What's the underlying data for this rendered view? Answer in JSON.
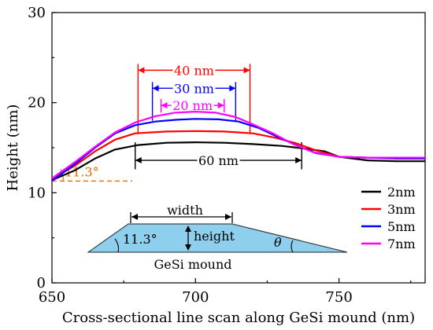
{
  "chart_data": {
    "type": "line",
    "title": "",
    "xlabel": "Cross-sectional line scan along GeSi mound (nm)",
    "ylabel": "Height (nm)",
    "xlim": [
      650,
      780
    ],
    "ylim": [
      0,
      30
    ],
    "xticks": [
      650,
      700,
      750
    ],
    "yticks": [
      0,
      10,
      20,
      30
    ],
    "grid": false,
    "legend_position": "right",
    "series": [
      {
        "name": "2nm",
        "color": "#000000",
        "points": [
          [
            650,
            11.4
          ],
          [
            658,
            12.5
          ],
          [
            665,
            13.8
          ],
          [
            672,
            14.8
          ],
          [
            680,
            15.3
          ],
          [
            690,
            15.55
          ],
          [
            700,
            15.6
          ],
          [
            710,
            15.55
          ],
          [
            720,
            15.4
          ],
          [
            730,
            15.2
          ],
          [
            738,
            14.9
          ],
          [
            745,
            14.6
          ],
          [
            750,
            14.0
          ],
          [
            760,
            13.6
          ],
          [
            770,
            13.5
          ],
          [
            780,
            13.5
          ]
        ]
      },
      {
        "name": "3nm",
        "color": "#ff0000",
        "points": [
          [
            650,
            11.6
          ],
          [
            658,
            13.0
          ],
          [
            665,
            14.6
          ],
          [
            672,
            15.9
          ],
          [
            679,
            16.6
          ],
          [
            690,
            16.8
          ],
          [
            700,
            16.85
          ],
          [
            710,
            16.8
          ],
          [
            720,
            16.6
          ],
          [
            728,
            16.1
          ],
          [
            735,
            15.5
          ],
          [
            742,
            14.7
          ],
          [
            750,
            14.0
          ],
          [
            760,
            13.9
          ],
          [
            770,
            13.9
          ],
          [
            780,
            13.9
          ]
        ]
      },
      {
        "name": "5nm",
        "color": "#0000ff",
        "points": [
          [
            650,
            11.3
          ],
          [
            658,
            13.2
          ],
          [
            665,
            15.0
          ],
          [
            672,
            16.6
          ],
          [
            679,
            17.5
          ],
          [
            686,
            17.9
          ],
          [
            693,
            18.1
          ],
          [
            700,
            18.2
          ],
          [
            708,
            18.15
          ],
          [
            715,
            17.9
          ],
          [
            722,
            17.2
          ],
          [
            728,
            16.3
          ],
          [
            735,
            15.3
          ],
          [
            742,
            14.4
          ],
          [
            750,
            14.0
          ],
          [
            760,
            13.9
          ],
          [
            770,
            13.8
          ],
          [
            780,
            13.8
          ]
        ]
      },
      {
        "name": "7nm",
        "color": "#ff00ff",
        "points": [
          [
            650,
            11.6
          ],
          [
            658,
            13.4
          ],
          [
            665,
            15.1
          ],
          [
            672,
            16.7
          ],
          [
            679,
            17.8
          ],
          [
            686,
            18.5
          ],
          [
            693,
            18.9
          ],
          [
            700,
            19.0
          ],
          [
            707,
            18.9
          ],
          [
            714,
            18.4
          ],
          [
            720,
            17.6
          ],
          [
            727,
            16.6
          ],
          [
            734,
            15.4
          ],
          [
            741,
            14.5
          ],
          [
            750,
            14.0
          ],
          [
            760,
            13.9
          ],
          [
            770,
            13.9
          ],
          [
            780,
            13.9
          ]
        ]
      }
    ],
    "annotations": [
      {
        "label": "40 nm",
        "color": "#ff0000",
        "x1": 680,
        "x2": 719,
        "y": 23.6,
        "vline_bottom": 16.5
      },
      {
        "label": "30 nm",
        "color": "#0000ff",
        "x1": 685,
        "x2": 714,
        "y": 21.6,
        "vline_bottom": 18.0
      },
      {
        "label": "20 nm",
        "color": "#ff00ff",
        "x1": 688,
        "x2": 710,
        "y": 19.7,
        "vline_bottom": 18.9
      },
      {
        "label": "60 nm",
        "color": "#000000",
        "x1": 679,
        "x2": 737,
        "y": 13.6,
        "vline_bottom": 12.6,
        "vline_top": 15.6
      }
    ],
    "angle_annotation": {
      "label": "11.3°",
      "color": "#e06c00",
      "y": 11.3,
      "x_end": 678
    },
    "inset": {
      "fill": "#8ecfee",
      "width_label": "width",
      "height_label": "height",
      "angle_label": "11.3°",
      "theta_label": "θ",
      "name_label": "GeSi mound"
    }
  }
}
